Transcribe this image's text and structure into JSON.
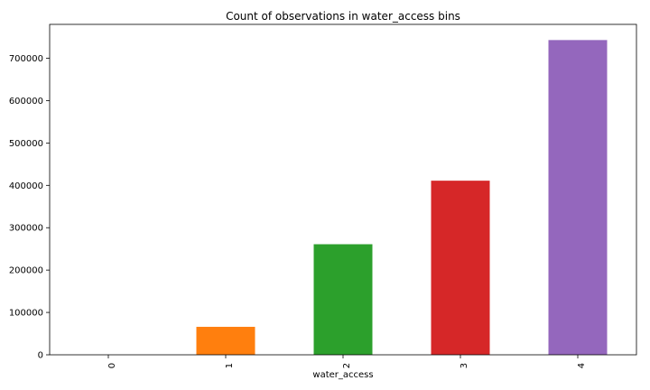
{
  "chart_data": {
    "type": "bar",
    "title": "Count of observations in water_access bins",
    "xlabel": "water_access",
    "ylabel": "",
    "categories": [
      "0",
      "1",
      "2",
      "3",
      "4"
    ],
    "values": [
      0,
      66000,
      261000,
      411000,
      743000
    ],
    "colors": [
      "#1f77b4",
      "#ff7f0e",
      "#2ca02c",
      "#d62728",
      "#9467bd"
    ],
    "ylim": [
      0,
      780000
    ],
    "yticks": [
      0,
      100000,
      200000,
      300000,
      400000,
      500000,
      600000,
      700000
    ],
    "ytick_labels": [
      "0",
      "100000",
      "200000",
      "300000",
      "400000",
      "500000",
      "600000",
      "700000"
    ],
    "grid": false,
    "legend": "none"
  }
}
